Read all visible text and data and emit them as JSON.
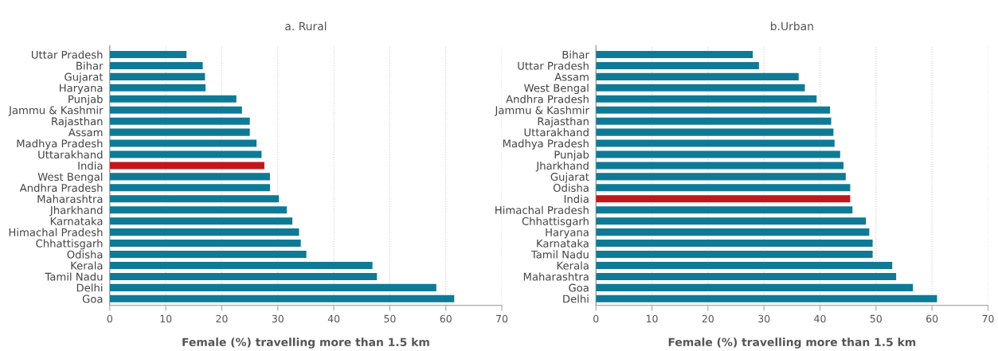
{
  "chart_data": [
    {
      "type": "bar",
      "orientation": "horizontal",
      "title": "a. Rural",
      "xlabel": "Female (%) travelling more than 1.5 km",
      "categories": [
        "Uttar Pradesh",
        "Bihar",
        "Gujarat",
        "Haryana",
        "Punjab",
        "Jammu & Kashmir",
        "Rajasthan",
        "Assam",
        "Madhya Pradesh",
        "Uttarakhand",
        "India",
        "West Bengal",
        "Andhra Pradesh",
        "Maharashtra",
        "Jharkhand",
        "Karnataka",
        "Himachal Pradesh",
        "Chhattisgarh",
        "Odisha",
        "Kerala",
        "Tamil Nadu",
        "Delhi",
        "Goa"
      ],
      "values": [
        13.7,
        16.6,
        17.0,
        17.1,
        22.6,
        23.6,
        25.0,
        25.0,
        26.2,
        27.1,
        27.6,
        28.6,
        28.6,
        30.2,
        31.6,
        32.6,
        33.8,
        34.1,
        35.1,
        46.9,
        47.7,
        58.3,
        61.5
      ],
      "colors": [
        "#0e7a96",
        "#0e7a96",
        "#0e7a96",
        "#0e7a96",
        "#0e7a96",
        "#0e7a96",
        "#0e7a96",
        "#0e7a96",
        "#0e7a96",
        "#0e7a96",
        "#c0171c",
        "#0e7a96",
        "#0e7a96",
        "#0e7a96",
        "#0e7a96",
        "#0e7a96",
        "#0e7a96",
        "#0e7a96",
        "#0e7a96",
        "#0e7a96",
        "#0e7a96",
        "#0e7a96",
        "#0e7a96"
      ],
      "xlim": [
        0,
        70
      ],
      "xticks": [
        0,
        10,
        20,
        30,
        40,
        50,
        60,
        70
      ],
      "grid": "x"
    },
    {
      "type": "bar",
      "orientation": "horizontal",
      "title": "b.Urban",
      "xlabel": "Female (%) travelling more than 1.5 km",
      "categories": [
        "Bihar",
        "Uttar Pradesh",
        "Assam",
        "West Bengal",
        "Andhra Pradesh",
        "Jammu & Kashmir",
        "Rajasthan",
        "Uttarakhand",
        "Madhya Pradesh",
        "Punjab",
        "Jharkhand",
        "Gujarat",
        "Odisha",
        "India",
        "Himachal Pradesh",
        "Chhattisgarh",
        "Haryana",
        "Karnataka",
        "Tamil Nadu",
        "Kerala",
        "Maharashtra",
        "Goa",
        "Delhi"
      ],
      "values": [
        28.0,
        29.1,
        36.2,
        37.3,
        39.4,
        41.8,
        42.0,
        42.4,
        42.6,
        43.6,
        44.2,
        44.6,
        45.4,
        45.4,
        45.8,
        48.2,
        48.8,
        49.4,
        49.4,
        52.9,
        53.6,
        56.6,
        60.9
      ],
      "colors": [
        "#0e7a96",
        "#0e7a96",
        "#0e7a96",
        "#0e7a96",
        "#0e7a96",
        "#0e7a96",
        "#0e7a96",
        "#0e7a96",
        "#0e7a96",
        "#0e7a96",
        "#0e7a96",
        "#0e7a96",
        "#0e7a96",
        "#c0171c",
        "#0e7a96",
        "#0e7a96",
        "#0e7a96",
        "#0e7a96",
        "#0e7a96",
        "#0e7a96",
        "#0e7a96",
        "#0e7a96",
        "#0e7a96"
      ],
      "xlim": [
        0,
        70
      ],
      "xticks": [
        0,
        10,
        20,
        30,
        40,
        50,
        60,
        70
      ],
      "grid": "x"
    }
  ]
}
